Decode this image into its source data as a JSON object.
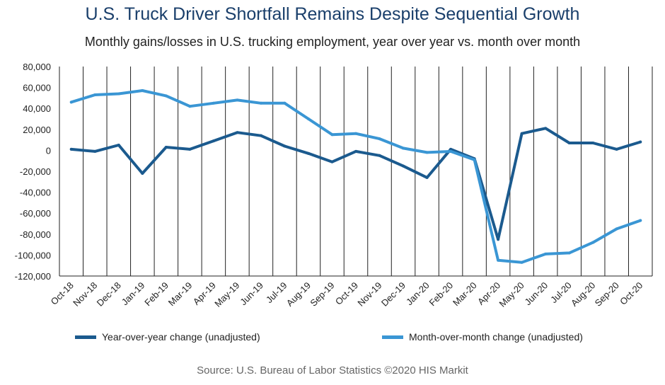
{
  "title": "U.S. Truck Driver Shortfall Remains Despite Sequential Growth",
  "subtitle": "Monthly gains/losses in U.S. trucking employment, year over year vs. month over month",
  "source": "Source: U.S. Bureau of Labor Statistics ©2020 HIS Markit",
  "chart_data": {
    "type": "line",
    "x": [
      "Oct-18",
      "Nov-18",
      "Dec-18",
      "Jan-19",
      "Feb-19",
      "Mar-19",
      "Apr-19",
      "May-19",
      "Jun-19",
      "Jul-19",
      "Aug-19",
      "Sep-19",
      "Oct-19",
      "Nov-19",
      "Dec-19",
      "Jan-20",
      "Feb-20",
      "Mar-20",
      "Apr-20",
      "May-20",
      "Jun-20",
      "Jul-20",
      "Aug-20",
      "Sep-20",
      "Oct-20"
    ],
    "ylim": [
      -120000,
      80000
    ],
    "yticks": [
      80000,
      60000,
      40000,
      20000,
      0,
      -20000,
      -40000,
      -60000,
      -80000,
      -100000,
      -120000
    ],
    "ytick_labels": [
      "80,000",
      "60,000",
      "40,000",
      "20,000",
      "0",
      "-20,000",
      "-40,000",
      "-60,000",
      "-80,000",
      "-100,000",
      "-120,000"
    ],
    "grid": "vertical",
    "legend_position": "bottom",
    "series": [
      {
        "name": "Year-over-year change (unadjusted)",
        "color": "#1b5a8e",
        "values": [
          1000,
          -1000,
          5000,
          -22000,
          3000,
          1000,
          9000,
          17000,
          14000,
          4000,
          -3000,
          -11000,
          -1000,
          -5000,
          -15000,
          -26000,
          1000,
          -8000,
          -85000,
          16000,
          21000,
          7000,
          7000,
          1000,
          8000
        ]
      },
      {
        "name": "Month-over-month change (unadjusted)",
        "color": "#3a96d4",
        "values": [
          46000,
          53000,
          54000,
          57000,
          52000,
          42000,
          45000,
          48000,
          45000,
          45000,
          30000,
          15000,
          16000,
          11000,
          2000,
          -2000,
          -1000,
          -9000,
          -105000,
          -107000,
          -99000,
          -98000,
          -88000,
          -75000,
          -67000
        ]
      }
    ]
  }
}
